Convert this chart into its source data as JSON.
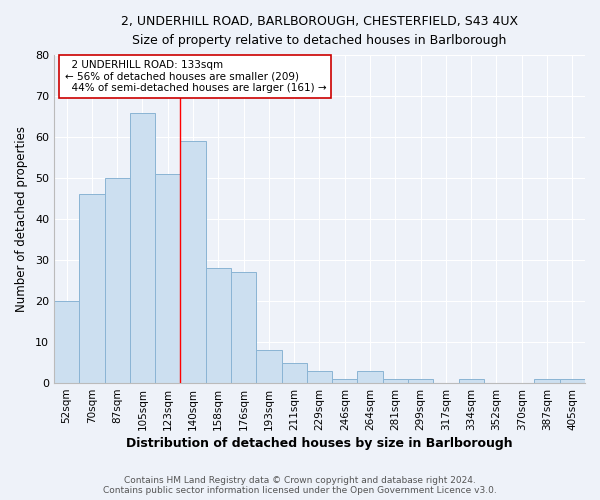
{
  "title_line1": "2, UNDERHILL ROAD, BARLBOROUGH, CHESTERFIELD, S43 4UX",
  "title_line2": "Size of property relative to detached houses in Barlborough",
  "xlabel": "Distribution of detached houses by size in Barlborough",
  "ylabel": "Number of detached properties",
  "bar_color": "#ccdff0",
  "bar_edge_color": "#8ab4d4",
  "categories": [
    "52sqm",
    "70sqm",
    "87sqm",
    "105sqm",
    "123sqm",
    "140sqm",
    "158sqm",
    "176sqm",
    "193sqm",
    "211sqm",
    "229sqm",
    "246sqm",
    "264sqm",
    "281sqm",
    "299sqm",
    "317sqm",
    "334sqm",
    "352sqm",
    "370sqm",
    "387sqm",
    "405sqm"
  ],
  "values": [
    20,
    46,
    50,
    66,
    51,
    59,
    28,
    27,
    8,
    5,
    3,
    1,
    3,
    1,
    1,
    0,
    1,
    0,
    0,
    1,
    1
  ],
  "ylim": [
    0,
    80
  ],
  "yticks": [
    0,
    10,
    20,
    30,
    40,
    50,
    60,
    70,
    80
  ],
  "property_label": "2 UNDERHILL ROAD: 133sqm",
  "pct_smaller": 56,
  "n_smaller": 209,
  "pct_larger": 44,
  "n_larger": 161,
  "red_line_x": 4.5,
  "background_color": "#eef2f9",
  "grid_color": "#ffffff",
  "annotation_box_color": "#ffffff",
  "annotation_box_edge": "#cc0000",
  "footer_line1": "Contains HM Land Registry data © Crown copyright and database right 2024.",
  "footer_line2": "Contains public sector information licensed under the Open Government Licence v3.0."
}
